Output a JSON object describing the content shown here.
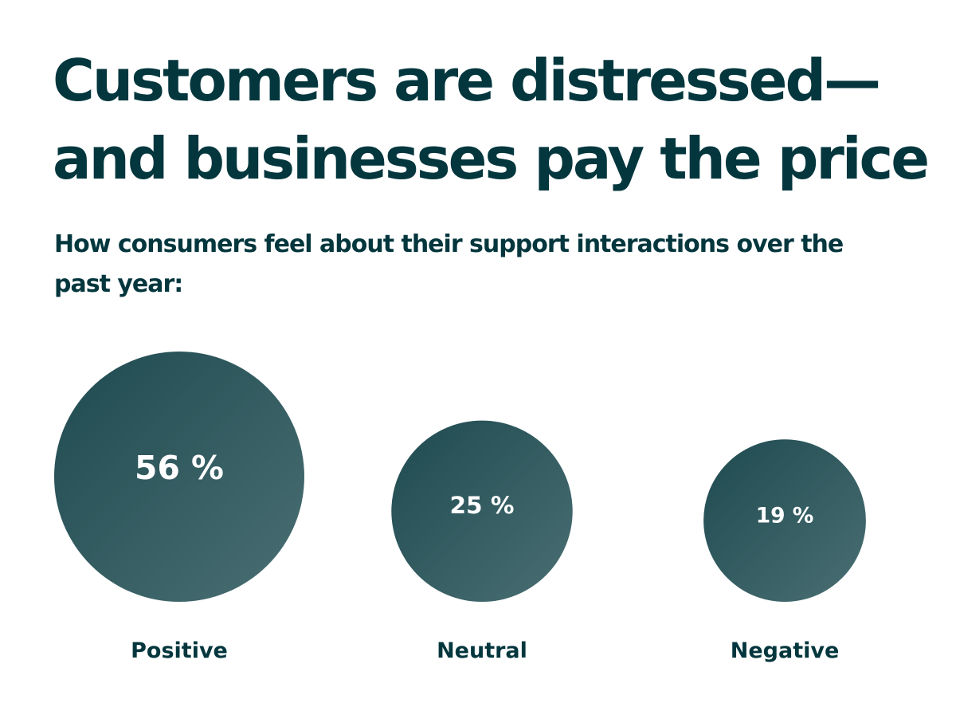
{
  "header": {
    "title_line1": "Customers are distressed—",
    "title_line2": "and businesses pay the price",
    "subtitle_line1": "How consumers feel about their support interactions over the",
    "subtitle_line2": "past year:"
  },
  "colors": {
    "text": "#03363d",
    "bubble_dark": "#1e4a50",
    "bubble_light": "#4a6f73",
    "value_text": "#ffffff"
  },
  "chart_data": {
    "type": "bubble",
    "title": "",
    "categories": [
      "Positive",
      "Neutral",
      "Negative"
    ],
    "values": [
      56,
      25,
      19
    ],
    "value_labels": [
      "56 %",
      "25 %",
      "19 %"
    ],
    "unit": "%"
  }
}
